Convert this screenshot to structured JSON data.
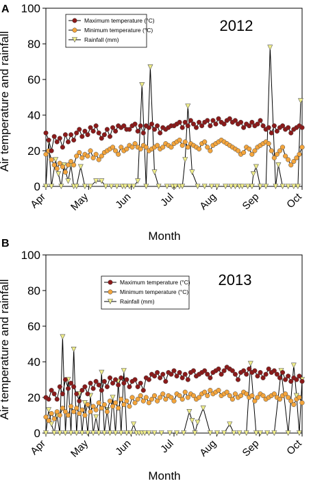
{
  "chart_data": [
    {
      "panel_label": "A",
      "type": "line",
      "year_label": "2012",
      "xlabel": "Month",
      "ylabel": "Air temperature and rainfall",
      "ylim": [
        0,
        100
      ],
      "yticks": [
        0,
        20,
        40,
        60,
        80,
        100
      ],
      "xticks": [
        "Apr",
        "May",
        "Jun",
        "Jul",
        "Aug",
        "Sep",
        "Oct"
      ],
      "xlim": [
        1,
        185
      ],
      "legend_position": "top-left",
      "series": [
        {
          "name": "Maximum temperature (°C)",
          "color": "#8b1a1a",
          "marker": "circle",
          "x": [
            1,
            3,
            5,
            7,
            9,
            11,
            13,
            15,
            17,
            19,
            21,
            23,
            25,
            27,
            29,
            31,
            33,
            35,
            37,
            39,
            41,
            43,
            45,
            47,
            49,
            51,
            53,
            55,
            57,
            59,
            61,
            63,
            65,
            67,
            69,
            71,
            73,
            75,
            77,
            79,
            81,
            83,
            85,
            87,
            89,
            91,
            93,
            95,
            97,
            99,
            101,
            103,
            105,
            107,
            109,
            111,
            113,
            115,
            117,
            119,
            121,
            123,
            125,
            127,
            129,
            131,
            133,
            135,
            137,
            139,
            141,
            143,
            145,
            147,
            149,
            151,
            153,
            155,
            157,
            159,
            161,
            163,
            165,
            167,
            169,
            171,
            173,
            175,
            177,
            179,
            181,
            183,
            185
          ],
          "values": [
            30,
            26,
            20,
            28,
            25,
            27,
            22,
            29,
            25,
            29,
            26,
            30,
            32,
            28,
            31,
            29,
            33,
            31,
            34,
            30,
            27,
            29,
            32,
            28,
            33,
            31,
            34,
            33,
            34,
            32,
            32,
            34,
            35,
            31,
            34,
            30,
            34,
            33,
            35,
            32,
            34,
            30,
            33,
            32,
            33,
            34,
            34,
            35,
            36,
            33,
            36,
            34,
            37,
            35,
            33,
            36,
            34,
            36,
            37,
            34,
            37,
            35,
            38,
            36,
            35,
            37,
            38,
            36,
            37,
            35,
            36,
            33,
            35,
            34,
            36,
            34,
            35,
            37,
            34,
            32,
            33,
            30,
            34,
            31,
            33,
            34,
            32,
            33,
            30,
            32,
            33,
            34,
            33
          ]
        },
        {
          "name": "Minimum temperature (°C)",
          "color": "#f4a53c",
          "marker": "circle",
          "x": [
            1,
            3,
            5,
            7,
            9,
            11,
            13,
            15,
            17,
            19,
            21,
            23,
            25,
            27,
            29,
            31,
            33,
            35,
            37,
            39,
            41,
            43,
            45,
            47,
            49,
            51,
            53,
            55,
            57,
            59,
            61,
            63,
            65,
            67,
            69,
            71,
            73,
            75,
            77,
            79,
            81,
            83,
            85,
            87,
            89,
            91,
            93,
            95,
            97,
            99,
            101,
            103,
            105,
            107,
            109,
            111,
            113,
            115,
            117,
            119,
            121,
            123,
            125,
            127,
            129,
            131,
            133,
            135,
            137,
            139,
            141,
            143,
            145,
            147,
            149,
            151,
            153,
            155,
            157,
            159,
            161,
            163,
            165,
            167,
            169,
            171,
            173,
            175,
            177,
            179,
            181,
            183,
            185
          ],
          "values": [
            18,
            20,
            15,
            12,
            10,
            13,
            11,
            8,
            12,
            14,
            12,
            17,
            19,
            16,
            18,
            17,
            20,
            16,
            18,
            15,
            17,
            19,
            20,
            21,
            22,
            20,
            18,
            22,
            20,
            21,
            23,
            22,
            24,
            22,
            21,
            23,
            22,
            20,
            21,
            22,
            23,
            21,
            22,
            24,
            23,
            22,
            24,
            25,
            26,
            23,
            25,
            22,
            24,
            23,
            22,
            21,
            24,
            25,
            22,
            20,
            23,
            24,
            25,
            26,
            25,
            24,
            23,
            22,
            21,
            20,
            18,
            19,
            22,
            21,
            18,
            20,
            22,
            23,
            24,
            25,
            24,
            20,
            16,
            18,
            20,
            22,
            17,
            15,
            12,
            14,
            16,
            18,
            22
          ]
        },
        {
          "name": "Rainfall (mm)",
          "color": "#f0ee8a",
          "marker": "triangle-down",
          "x": [
            1,
            3,
            5,
            8,
            10,
            12,
            14,
            17,
            19,
            21,
            23,
            26,
            29,
            33,
            37,
            41,
            44,
            48,
            52,
            56,
            58,
            61,
            64,
            67,
            70,
            73,
            76,
            79,
            82,
            88,
            92,
            94,
            97,
            99,
            101,
            103,
            106,
            110,
            115,
            120,
            124,
            130,
            134,
            137,
            140,
            142,
            146,
            149,
            150,
            152,
            155,
            159,
            162,
            166,
            168,
            171,
            175,
            179,
            182,
            184
          ],
          "values": [
            0,
            25,
            0,
            15,
            7,
            0,
            12,
            3,
            12,
            0,
            0,
            11,
            0,
            0,
            3,
            3,
            0,
            0,
            0,
            0,
            0,
            0,
            0,
            3,
            57,
            0,
            67,
            8,
            0,
            0,
            0,
            0,
            0,
            0,
            15,
            45,
            8,
            0,
            0,
            0,
            0,
            0,
            0,
            0,
            0,
            0,
            0,
            0,
            7,
            11,
            0,
            0,
            78,
            0,
            12,
            0,
            0,
            0,
            0,
            48
          ]
        }
      ]
    },
    {
      "panel_label": "B",
      "type": "line",
      "year_label": "2013",
      "xlabel": "Month",
      "ylabel": "Air temperature and rainfall",
      "ylim": [
        0,
        100
      ],
      "yticks": [
        0,
        20,
        40,
        60,
        80,
        100
      ],
      "xticks": [
        "Apr",
        "May",
        "Jun",
        "Jul",
        "Aug",
        "Sep",
        "Oct"
      ],
      "xlim": [
        1,
        185
      ],
      "legend_position": "top-center",
      "series": [
        {
          "name": "Maximum temperature (°C)",
          "color": "#8b1a1a",
          "marker": "circle",
          "x": [
            1,
            3,
            5,
            7,
            9,
            11,
            13,
            15,
            17,
            19,
            21,
            23,
            25,
            27,
            29,
            31,
            33,
            35,
            37,
            39,
            41,
            43,
            45,
            47,
            49,
            51,
            53,
            55,
            57,
            59,
            61,
            63,
            65,
            67,
            69,
            71,
            73,
            75,
            77,
            79,
            81,
            83,
            85,
            87,
            89,
            91,
            93,
            95,
            97,
            99,
            101,
            103,
            105,
            107,
            109,
            111,
            113,
            115,
            117,
            119,
            121,
            123,
            125,
            127,
            129,
            131,
            133,
            135,
            137,
            139,
            141,
            143,
            145,
            147,
            149,
            151,
            153,
            155,
            157,
            159,
            161,
            163,
            165,
            167,
            169,
            171,
            173,
            175,
            177,
            179,
            181,
            183,
            185
          ],
          "values": [
            20,
            19,
            24,
            22,
            19,
            26,
            22,
            30,
            25,
            28,
            26,
            22,
            18,
            24,
            26,
            22,
            28,
            25,
            29,
            27,
            24,
            29,
            26,
            31,
            28,
            30,
            27,
            31,
            28,
            30,
            26,
            29,
            30,
            26,
            28,
            24,
            31,
            30,
            33,
            32,
            34,
            31,
            33,
            29,
            34,
            33,
            35,
            32,
            34,
            31,
            33,
            30,
            34,
            35,
            32,
            33,
            34,
            35,
            33,
            31,
            34,
            35,
            36,
            33,
            35,
            37,
            36,
            35,
            33,
            30,
            34,
            35,
            33,
            36,
            34,
            35,
            32,
            34,
            31,
            33,
            36,
            34,
            35,
            33,
            31,
            34,
            30,
            32,
            29,
            31,
            30,
            32,
            29
          ]
        },
        {
          "name": "Minimum temperature (°C)",
          "color": "#f4a53c",
          "marker": "circle",
          "x": [
            1,
            3,
            5,
            7,
            9,
            11,
            13,
            15,
            17,
            19,
            21,
            23,
            25,
            27,
            29,
            31,
            33,
            35,
            37,
            39,
            41,
            43,
            45,
            47,
            49,
            51,
            53,
            55,
            57,
            59,
            61,
            63,
            65,
            67,
            69,
            71,
            73,
            75,
            77,
            79,
            81,
            83,
            85,
            87,
            89,
            91,
            93,
            95,
            97,
            99,
            101,
            103,
            105,
            107,
            109,
            111,
            113,
            115,
            117,
            119,
            121,
            123,
            125,
            127,
            129,
            131,
            133,
            135,
            137,
            139,
            141,
            143,
            145,
            147,
            149,
            151,
            153,
            155,
            157,
            159,
            161,
            163,
            165,
            167,
            169,
            171,
            173,
            175,
            177,
            179,
            181,
            183,
            185
          ],
          "values": [
            9,
            7,
            11,
            8,
            12,
            10,
            14,
            12,
            10,
            15,
            12,
            14,
            11,
            13,
            10,
            16,
            12,
            15,
            13,
            17,
            14,
            16,
            12,
            18,
            15,
            17,
            14,
            19,
            16,
            18,
            15,
            20,
            17,
            19,
            21,
            18,
            20,
            17,
            19,
            21,
            18,
            20,
            22,
            19,
            21,
            20,
            18,
            22,
            21,
            19,
            23,
            20,
            22,
            21,
            19,
            20,
            22,
            23,
            21,
            24,
            22,
            23,
            24,
            21,
            22,
            23,
            21,
            19,
            22,
            20,
            21,
            23,
            22,
            20,
            21,
            18,
            20,
            22,
            21,
            19,
            20,
            21,
            22,
            20,
            19,
            21,
            22,
            20,
            18,
            16,
            19,
            20,
            17
          ]
        },
        {
          "name": "Rainfall (mm)",
          "color": "#f0ee8a",
          "marker": "triangle-down",
          "x": [
            1,
            3,
            5,
            7,
            9,
            11,
            13,
            15,
            17,
            19,
            21,
            23,
            25,
            27,
            29,
            31,
            33,
            35,
            37,
            39,
            41,
            43,
            45,
            47,
            49,
            51,
            53,
            55,
            57,
            59,
            62,
            64,
            66,
            68,
            70,
            72,
            75,
            79,
            84,
            90,
            95,
            100,
            104,
            106,
            108,
            110,
            114,
            119,
            124,
            129,
            133,
            136,
            140,
            145,
            148,
            152,
            155,
            160,
            165,
            170,
            175,
            179,
            181,
            183,
            185
          ],
          "values": [
            0,
            13,
            5,
            0,
            10,
            0,
            54,
            0,
            30,
            0,
            47,
            0,
            22,
            0,
            17,
            0,
            21,
            0,
            9,
            0,
            34,
            0,
            13,
            0,
            20,
            0,
            29,
            0,
            35,
            0,
            0,
            5,
            0,
            0,
            0,
            0,
            0,
            0,
            0,
            0,
            0,
            0,
            12,
            7,
            0,
            6,
            14,
            0,
            0,
            0,
            5,
            0,
            0,
            0,
            39,
            0,
            0,
            0,
            0,
            35,
            0,
            38,
            21,
            0,
            30
          ]
        }
      ]
    }
  ]
}
